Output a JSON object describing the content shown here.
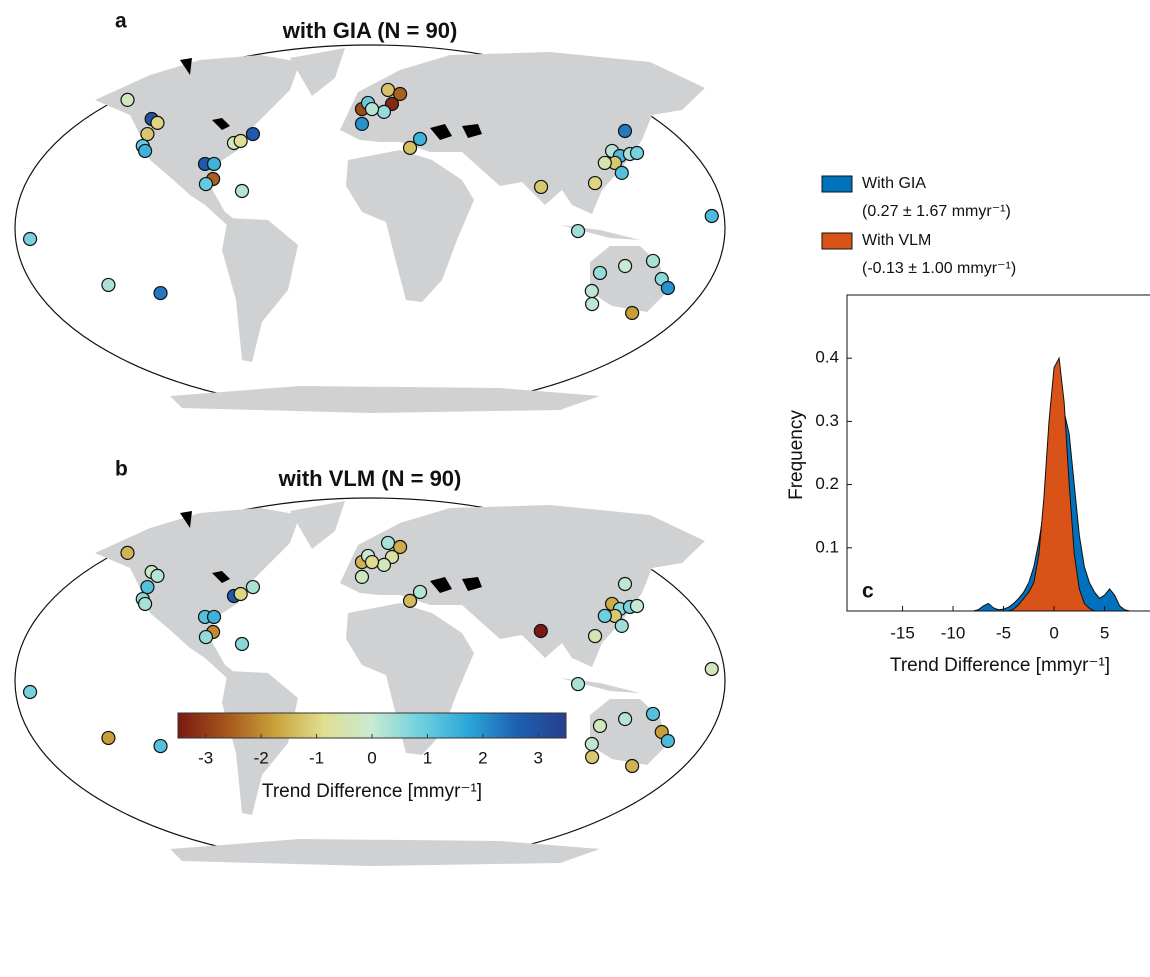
{
  "chart_data": [
    {
      "type": "map",
      "panel": "a",
      "title": "with GIA (N = 90)",
      "lon": [
        -163,
        -135.5,
        -130,
        -131,
        -129,
        -126,
        -89.6,
        -84.7,
        -82.8,
        -85.9,
        -77.9,
        -74.5,
        -68.9,
        -66.4,
        -172.7,
        -140,
        -114,
        173.7,
        -5.2,
        -1.3,
        12.7,
        20.8,
        14.5,
        8.9,
        1.3,
        -4.9,
        22.6,
        29,
        89.2,
        118,
        105.5,
        151.6,
        135.6,
        138.2,
        144.5,
        148.8,
        133.3,
        134.3,
        127.8,
        120.6,
        132.5,
        146.1,
        154.5,
        160.4,
        120.2,
        124.1,
        150.1
      ],
      "lat": [
        63,
        53.6,
        51.7,
        46.2,
        40.3,
        37.9,
        31.5,
        31.5,
        24.1,
        21.6,
        41.8,
        42.8,
        46.2,
        18.2,
        -5.4,
        -28,
        -32,
        5.9,
        58.5,
        61.5,
        67.9,
        65.9,
        61,
        57.1,
        58.5,
        51.2,
        39.4,
        43.8,
        20.2,
        22.1,
        -1.5,
        47.7,
        37.9,
        35.4,
        36.4,
        36.9,
        32,
        27.1,
        32,
        -22.1,
        -18.7,
        -16.2,
        -25.1,
        -29.5,
        -31,
        -37.4,
        -41.8
      ],
      "values": [
        -0.3,
        3,
        -1,
        -1.2,
        1,
        1.5,
        2.8,
        1.5,
        -2.5,
        1,
        -0.3,
        -0.8,
        2.8,
        0.2,
        0.8,
        0.3,
        2.3,
        1.3,
        -2.8,
        1,
        -1.3,
        -2.5,
        -3.3,
        0.5,
        0.2,
        2,
        -1.3,
        1.5,
        -1.2,
        -1,
        0.4,
        2.3,
        0.2,
        1.3,
        0.3,
        0.8,
        -1.2,
        1.2,
        -0.5,
        0.5,
        0,
        0.3,
        0.6,
        2,
        0.1,
        0.1,
        -1.8
      ]
    },
    {
      "type": "map",
      "panel": "b",
      "title": "with VLM (N = 90)",
      "lon": [
        -163,
        -135.5,
        -130,
        -131,
        -129,
        -126,
        -89.6,
        -84.7,
        -82.8,
        -85.9,
        -77.9,
        -74.5,
        -68.9,
        -66.4,
        -172.7,
        -140,
        -114,
        173.7,
        -5.2,
        -1.3,
        12.7,
        20.8,
        14.5,
        8.9,
        1.3,
        -4.9,
        22.6,
        29,
        90.3,
        118,
        105.5,
        151.6,
        135.6,
        138.2,
        144.5,
        148.8,
        133.3,
        134.3,
        127.8,
        120.6,
        132.5,
        146.1,
        154.5,
        160.4,
        120.2,
        124.1,
        150.1
      ],
      "lat": [
        63,
        53.6,
        51.7,
        46.2,
        40.3,
        37.9,
        31.5,
        31.5,
        24.1,
        21.6,
        41.8,
        42.8,
        46.2,
        18.2,
        -5.4,
        -28,
        -32,
        5.9,
        58.5,
        61.5,
        67.9,
        65.9,
        61,
        57.1,
        58.5,
        51.2,
        39.4,
        43.8,
        24.6,
        22.1,
        -1.5,
        47.7,
        37.9,
        35.4,
        36.4,
        36.9,
        32,
        27.1,
        32,
        -22.1,
        -18.7,
        -16.2,
        -25.1,
        -29.5,
        -31,
        -37.4,
        -41.8
      ],
      "values": [
        -1.5,
        -0.2,
        0.2,
        1.2,
        0.6,
        0.3,
        1.2,
        1.5,
        -2,
        0.5,
        2.8,
        -1,
        0.3,
        0.6,
        0.8,
        -1.8,
        1.2,
        -0.3,
        -1.5,
        0,
        0.3,
        -1.6,
        -0.6,
        -0.3,
        -0.9,
        -0.2,
        -1.4,
        0.2,
        -3.5,
        -0.4,
        0.3,
        0.1,
        -1.6,
        0.6,
        0.8,
        0,
        -1.2,
        0.4,
        0.9,
        -0.3,
        0.2,
        1.2,
        -1.8,
        1.3,
        0.1,
        -1.2,
        -1.5
      ]
    },
    {
      "type": "colorbar",
      "label": "Trend Difference [mmyr⁻¹]",
      "clim": [
        -3.5,
        3.5
      ],
      "ticks": [
        -3,
        -2,
        -1,
        0,
        1,
        2,
        3
      ],
      "colormap": [
        "#7a1a12",
        "#a5561c",
        "#c9a23a",
        "#e0de90",
        "#c8ead2",
        "#6fd0df",
        "#2aa6d8",
        "#1e5fb0",
        "#283f8e"
      ]
    },
    {
      "type": "area",
      "panel": "c",
      "xlabel": "Trend Difference [mmyr⁻¹]",
      "ylabel": "Frequency",
      "xlim": [
        -20.5,
        9.5
      ],
      "ylim": [
        0,
        0.5
      ],
      "xticks": [
        -15,
        -10,
        -5,
        0,
        5
      ],
      "yticks": [
        0.1,
        0.2,
        0.3,
        0.4
      ],
      "x": [
        -10,
        -9.5,
        -9,
        -8.5,
        -8,
        -7.5,
        -7,
        -6.5,
        -6,
        -5.5,
        -5,
        -4.5,
        -4,
        -3.5,
        -3,
        -2.5,
        -2,
        -1.5,
        -1,
        -0.5,
        0,
        0.5,
        1,
        1.5,
        2,
        2.5,
        3,
        3.5,
        4,
        4.5,
        5,
        5.5,
        6,
        6.5,
        7,
        7.5,
        8
      ],
      "series": [
        {
          "name": "With GIA",
          "label_detail": "(0.27 ± 1.67 mmyr⁻¹)",
          "color": "#0072bd",
          "values": [
            0,
            0,
            0,
            0,
            0,
            0.002,
            0.008,
            0.012,
            0.005,
            0.002,
            0.003,
            0.006,
            0.012,
            0.02,
            0.03,
            0.045,
            0.07,
            0.11,
            0.16,
            0.22,
            0.27,
            0.305,
            0.315,
            0.28,
            0.2,
            0.12,
            0.07,
            0.045,
            0.03,
            0.02,
            0.025,
            0.035,
            0.025,
            0.008,
            0.002,
            0,
            0
          ]
        },
        {
          "name": "With VLM",
          "label_detail": "(-0.13 ± 1.00 mmyr⁻¹)",
          "color": "#d95319",
          "values": [
            0,
            0,
            0,
            0,
            0,
            0,
            0,
            0,
            0,
            0,
            0,
            0,
            0.003,
            0.01,
            0.02,
            0.03,
            0.045,
            0.09,
            0.18,
            0.3,
            0.385,
            0.4,
            0.33,
            0.2,
            0.09,
            0.035,
            0.012,
            0.004,
            0,
            0,
            0,
            0,
            0,
            0,
            0,
            0,
            0
          ]
        }
      ]
    }
  ]
}
